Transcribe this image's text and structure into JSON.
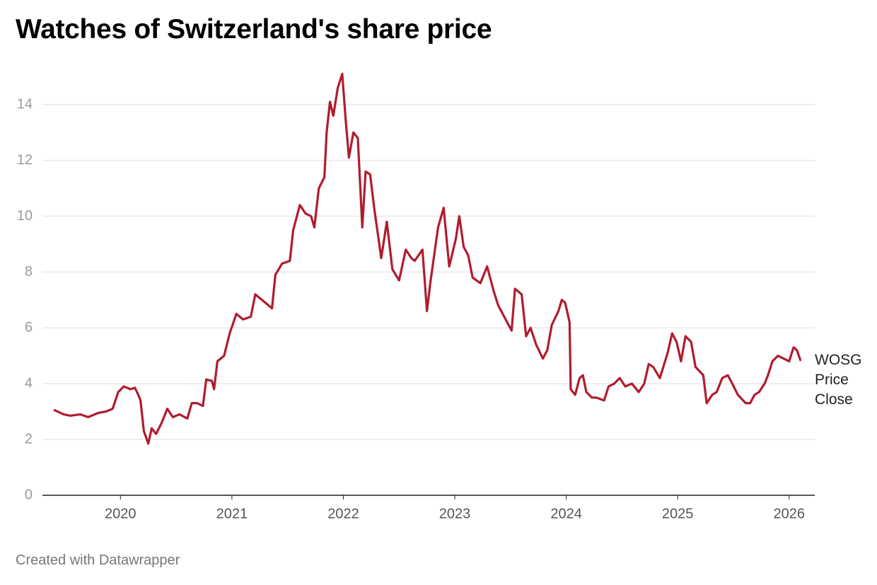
{
  "chart_data": {
    "type": "line",
    "title": "Watches of Switzerland's share price",
    "footer": "Created with Datawrapper",
    "xlim": [
      2019.3,
      2026.23
    ],
    "xticks": [
      2020,
      2021,
      2022,
      2023,
      2024,
      2025,
      2026
    ],
    "ylim": [
      0,
      15.2
    ],
    "yticks": [
      0,
      2,
      4,
      6,
      8,
      10,
      12,
      14
    ],
    "grid": true,
    "x": [
      2019.41,
      2019.49,
      2019.55,
      2019.64,
      2019.71,
      2019.8,
      2019.87,
      2019.93,
      2019.98,
      2020.03,
      2020.09,
      2020.13,
      2020.16,
      2020.18,
      2020.21,
      2020.25,
      2020.28,
      2020.32,
      2020.37,
      2020.42,
      2020.47,
      2020.53,
      2020.6,
      2020.64,
      2020.69,
      2020.74,
      2020.77,
      2020.82,
      2020.84,
      2020.87,
      2020.93,
      2020.98,
      2021.04,
      2021.1,
      2021.17,
      2021.21,
      2021.27,
      2021.36,
      2021.39,
      2021.45,
      2021.52,
      2021.55,
      2021.61,
      2021.66,
      2021.71,
      2021.74,
      2021.78,
      2021.83,
      2021.85,
      2021.88,
      2021.91,
      2021.95,
      2021.99,
      2022.02,
      2022.05,
      2022.09,
      2022.13,
      2022.17,
      2022.2,
      2022.24,
      2022.28,
      2022.34,
      2022.39,
      2022.44,
      2022.5,
      2022.56,
      2022.61,
      2022.64,
      2022.71,
      2022.75,
      2022.78,
      2022.85,
      2022.9,
      2022.95,
      2023.01,
      2023.04,
      2023.08,
      2023.12,
      2023.16,
      2023.23,
      2023.29,
      2023.35,
      2023.39,
      2023.43,
      2023.47,
      2023.51,
      2023.54,
      2023.6,
      2023.64,
      2023.68,
      2023.73,
      2023.79,
      2023.83,
      2023.87,
      2023.93,
      2023.96,
      2023.99,
      2024.03,
      2024.04,
      2024.08,
      2024.12,
      2024.15,
      2024.18,
      2024.23,
      2024.27,
      2024.34,
      2024.38,
      2024.43,
      2024.48,
      2024.53,
      2024.59,
      2024.65,
      2024.7,
      2024.74,
      2024.78,
      2024.84,
      2024.91,
      2024.95,
      2024.99,
      2025.03,
      2025.07,
      2025.12,
      2025.16,
      2025.23,
      2025.26,
      2025.31,
      2025.35,
      2025.4,
      2025.45,
      2025.49,
      2025.54,
      2025.61,
      2025.65,
      2025.69,
      2025.73,
      2025.78,
      2025.81,
      2025.85,
      2025.9,
      2025.95,
      2026.0,
      2026.04,
      2026.07,
      2026.1
    ],
    "series": [
      {
        "name": "WOSG Price Close",
        "color": "#b01c2e",
        "values": [
          3.05,
          2.9,
          2.85,
          2.9,
          2.8,
          2.95,
          3.0,
          3.1,
          3.7,
          3.9,
          3.8,
          3.85,
          3.6,
          3.4,
          2.3,
          1.85,
          2.4,
          2.2,
          2.6,
          3.1,
          2.8,
          2.9,
          2.75,
          3.3,
          3.3,
          3.2,
          4.15,
          4.1,
          3.8,
          4.8,
          5.0,
          5.8,
          6.5,
          6.3,
          6.4,
          7.2,
          7.0,
          6.7,
          7.9,
          8.3,
          8.4,
          9.5,
          10.4,
          10.1,
          10.0,
          9.6,
          11.0,
          11.4,
          13.0,
          14.1,
          13.6,
          14.6,
          15.1,
          13.5,
          12.1,
          13.0,
          12.8,
          9.6,
          11.6,
          11.5,
          10.2,
          8.5,
          9.8,
          8.1,
          7.7,
          8.8,
          8.5,
          8.4,
          8.8,
          6.6,
          7.6,
          9.6,
          10.3,
          8.2,
          9.2,
          10.0,
          8.9,
          8.6,
          7.8,
          7.6,
          8.2,
          7.3,
          6.8,
          6.5,
          6.2,
          5.9,
          7.4,
          7.2,
          5.7,
          6.0,
          5.4,
          4.9,
          5.2,
          6.1,
          6.6,
          7.0,
          6.9,
          6.2,
          3.8,
          3.6,
          4.2,
          4.3,
          3.7,
          3.5,
          3.5,
          3.4,
          3.9,
          4.0,
          4.2,
          3.9,
          4.0,
          3.7,
          4.0,
          4.7,
          4.6,
          4.2,
          5.1,
          5.8,
          5.5,
          4.8,
          5.7,
          5.5,
          4.6,
          4.3,
          3.3,
          3.6,
          3.7,
          4.2,
          4.3,
          4.0,
          3.6,
          3.3,
          3.3,
          3.6,
          3.7,
          4.0,
          4.3,
          4.8,
          5.0,
          4.9,
          4.8,
          5.3,
          5.2,
          4.85
        ]
      }
    ]
  }
}
